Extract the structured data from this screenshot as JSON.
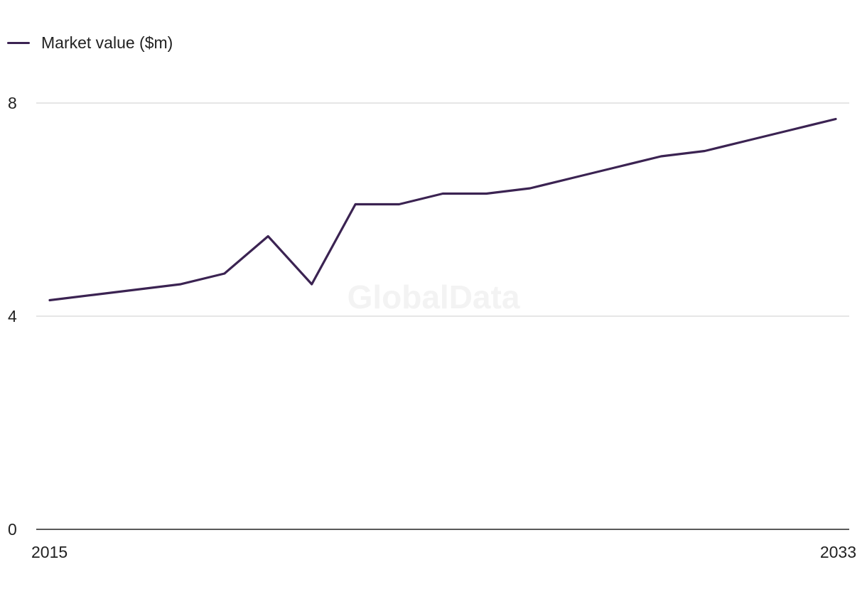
{
  "colors": {
    "series": "#3b2352",
    "gridline": "#d6d6d6",
    "axis": "#222222",
    "text": "#222222",
    "watermark": "#f3f3f3"
  },
  "watermark": "GlobalData",
  "chart_data": {
    "type": "line",
    "title": "",
    "xlabel": "",
    "ylabel": "",
    "x": [
      2015,
      2016,
      2017,
      2018,
      2019,
      2020,
      2021,
      2022,
      2023,
      2024,
      2025,
      2026,
      2027,
      2028,
      2029,
      2030,
      2031,
      2032,
      2033
    ],
    "series": [
      {
        "name": "Market value ($m)",
        "values": [
          4.3,
          4.4,
          4.5,
          4.6,
          4.8,
          5.5,
          4.6,
          6.1,
          6.1,
          6.3,
          6.3,
          6.4,
          6.6,
          6.8,
          7.0,
          7.1,
          7.3,
          7.5,
          7.7
        ]
      }
    ],
    "ylim": [
      0,
      8
    ],
    "yticks": [
      "0",
      "4",
      "8"
    ],
    "xtick_labels": [
      "2015",
      "2033"
    ],
    "grid": true,
    "legend": "top-left"
  }
}
